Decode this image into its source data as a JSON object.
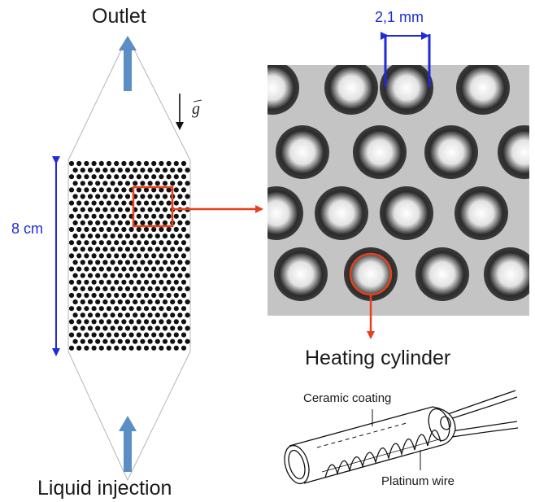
{
  "labels": {
    "outlet": "Outlet",
    "liquid_injection": "Liquid injection",
    "gravity_symbol": "g",
    "height_dimension": "8 cm",
    "spacing_dimension": "2,1 mm",
    "heating_cylinder": "Heating cylinder",
    "ceramic_coating": "Ceramic coating",
    "platinum_wire": "Platinum wire"
  },
  "colors": {
    "flow_arrow": "#5b8ec4",
    "dimension": "#1f2bd8",
    "highlight": "#e8401c",
    "cylinders": "#111111",
    "photo_background": "#c4c4c4"
  },
  "icons": {
    "flow_up": "arrow-up-icon",
    "gravity": "arrow-down-icon",
    "zoom": "arrow-right-icon"
  }
}
